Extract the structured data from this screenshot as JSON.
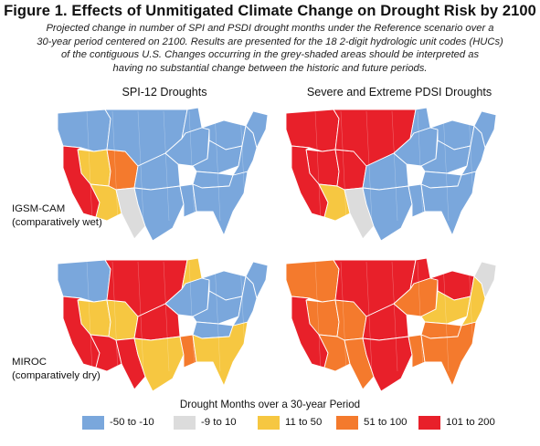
{
  "figure": {
    "title": "Figure 1. Effects of Unmitigated Climate Change on Drought Risk by 2100",
    "subtitle_lines": [
      "Projected change in number of SPI and PSDI drought months under the Reference scenario over a",
      "30-year period centered on 2100. Results are presented for the 18 2-digit hydrologic unit codes (HUCs)",
      "of the contiguous U.S. Changes occurring in the grey-shaded areas should be interpreted as",
      "having no substantial change between the historic and future periods."
    ]
  },
  "columns": {
    "spi": "SPI-12 Droughts",
    "pdsi": "Severe and Extreme PDSI Droughts"
  },
  "rows": {
    "igsm": {
      "line1": "IGSM-CAM",
      "line2": "(comparatively wet)"
    },
    "miroc": {
      "line1": "MIROC",
      "line2": "(comparatively dry)"
    }
  },
  "legend": {
    "title": "Drought Months over a 30-year Period",
    "items": [
      {
        "label": "-50 to -10",
        "color": "#7aa7dc"
      },
      {
        "label": "-9 to 10",
        "color": "#dcdcdc"
      },
      {
        "label": "11 to 50",
        "color": "#f6c741"
      },
      {
        "label": "51 to 100",
        "color": "#f47a2d"
      },
      {
        "label": "101 to 200",
        "color": "#e8202a"
      }
    ]
  },
  "maps": {
    "igsm_spi": [
      "lightblue",
      "yellow",
      "orange",
      "red",
      "yellow",
      "lightblue",
      "grey",
      "lightblue",
      "lightblue",
      "lightblue",
      "lightblue",
      "lightblue",
      "lightblue",
      "lightblue",
      "lightblue",
      "lightblue",
      "lightblue",
      "lightblue"
    ],
    "igsm_pdsi": [
      "red",
      "red",
      "red",
      "red",
      "yellow",
      "red",
      "grey",
      "lightblue",
      "lightblue",
      "lightblue",
      "lightblue",
      "lightblue",
      "lightblue",
      "lightblue",
      "lightblue",
      "lightblue",
      "lightblue",
      "lightblue"
    ],
    "miroc_spi": [
      "lightblue",
      "yellow",
      "yellow",
      "red",
      "red",
      "red",
      "red",
      "red",
      "yellow",
      "yellow",
      "orange",
      "lightblue",
      "lightblue",
      "lightblue",
      "lightblue",
      "yellow",
      "lightblue",
      "lightblue"
    ],
    "miroc_pdsi": [
      "orange",
      "orange",
      "orange",
      "red",
      "orange",
      "red",
      "orange",
      "red",
      "red",
      "red",
      "orange",
      "orange",
      "red",
      "yellow",
      "orange",
      "orange",
      "yellow",
      "grey"
    ]
  }
}
